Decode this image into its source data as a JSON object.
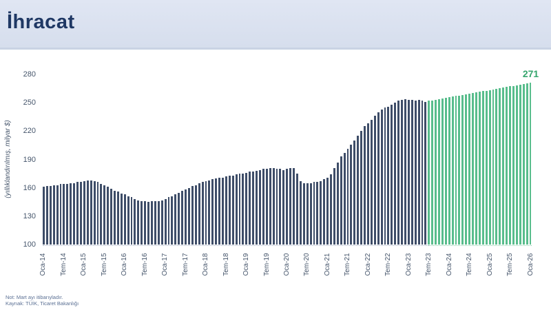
{
  "header": {
    "title": "İhracat"
  },
  "notes": {
    "line1": "Not: Mart ayı itibarıyladır.",
    "line2": "Kaynak: TÜİK, Ticaret Bakanlığı"
  },
  "colors": {
    "header_bg": "#d9e1ef",
    "title_text": "#1f3864",
    "actual_bar": "#3e4d68",
    "forecast_bar": "#58bd8c",
    "annotation_text": "#35a56d",
    "axis_text": "#44546a"
  },
  "chart_data": {
    "type": "bar",
    "title": "İhracat",
    "ylabel": "(yıllıklandırılmış, milyar $)",
    "xlabel": "",
    "ylim": [
      100,
      280
    ],
    "yticks": [
      100,
      130,
      160,
      190,
      220,
      250,
      280
    ],
    "grid": false,
    "legend": false,
    "frequency": "monthly",
    "x_range": [
      "Oca-14",
      "Oca-26"
    ],
    "xtick_labels": [
      "Oca-14",
      "Tem-14",
      "Oca-15",
      "Tem-15",
      "Oca-16",
      "Tem-16",
      "Oca-17",
      "Tem-17",
      "Oca-18",
      "Tem-18",
      "Oca-19",
      "Tem-19",
      "Oca-20",
      "Tem-20",
      "Oca-21",
      "Tem-21",
      "Oca-22",
      "Tem-22",
      "Oca-23",
      "Tem-23",
      "Oca-24",
      "Tem-24",
      "Oca-25",
      "Tem-25",
      "Oca-26"
    ],
    "xtick_every_n_bars": 6,
    "forecast_start_index": 114,
    "values": [
      161,
      162,
      162,
      163,
      163,
      164,
      164,
      164,
      165,
      165,
      166,
      166,
      167,
      168,
      168,
      167,
      166,
      164,
      163,
      161,
      159,
      157,
      156,
      154,
      153,
      151,
      150,
      148,
      147,
      146,
      146,
      145,
      146,
      146,
      146,
      147,
      148,
      150,
      151,
      153,
      155,
      157,
      158,
      160,
      162,
      163,
      165,
      166,
      167,
      168,
      169,
      170,
      171,
      171,
      172,
      173,
      173,
      174,
      175,
      175,
      176,
      177,
      177,
      178,
      179,
      180,
      180,
      181,
      181,
      180,
      180,
      179,
      180,
      181,
      181,
      175,
      167,
      165,
      165,
      165,
      166,
      166,
      167,
      169,
      171,
      174,
      181,
      187,
      193,
      197,
      201,
      206,
      210,
      215,
      220,
      225,
      228,
      232,
      236,
      240,
      243,
      245,
      246,
      248,
      250,
      252,
      253,
      254,
      253,
      253,
      252,
      253,
      252,
      251,
      252,
      252.6,
      253.2,
      253.9,
      254.5,
      255.2,
      255.8,
      256.4,
      257.1,
      257.7,
      258.4,
      259,
      259.6,
      260.3,
      260.9,
      261.5,
      262.2,
      262.8,
      263.4,
      264.1,
      264.7,
      265.4,
      266,
      266.6,
      267.3,
      267.9,
      268.5,
      269.2,
      269.8,
      270.4,
      271
    ],
    "annotation": {
      "text": "271",
      "anchor": "last-bar"
    }
  }
}
